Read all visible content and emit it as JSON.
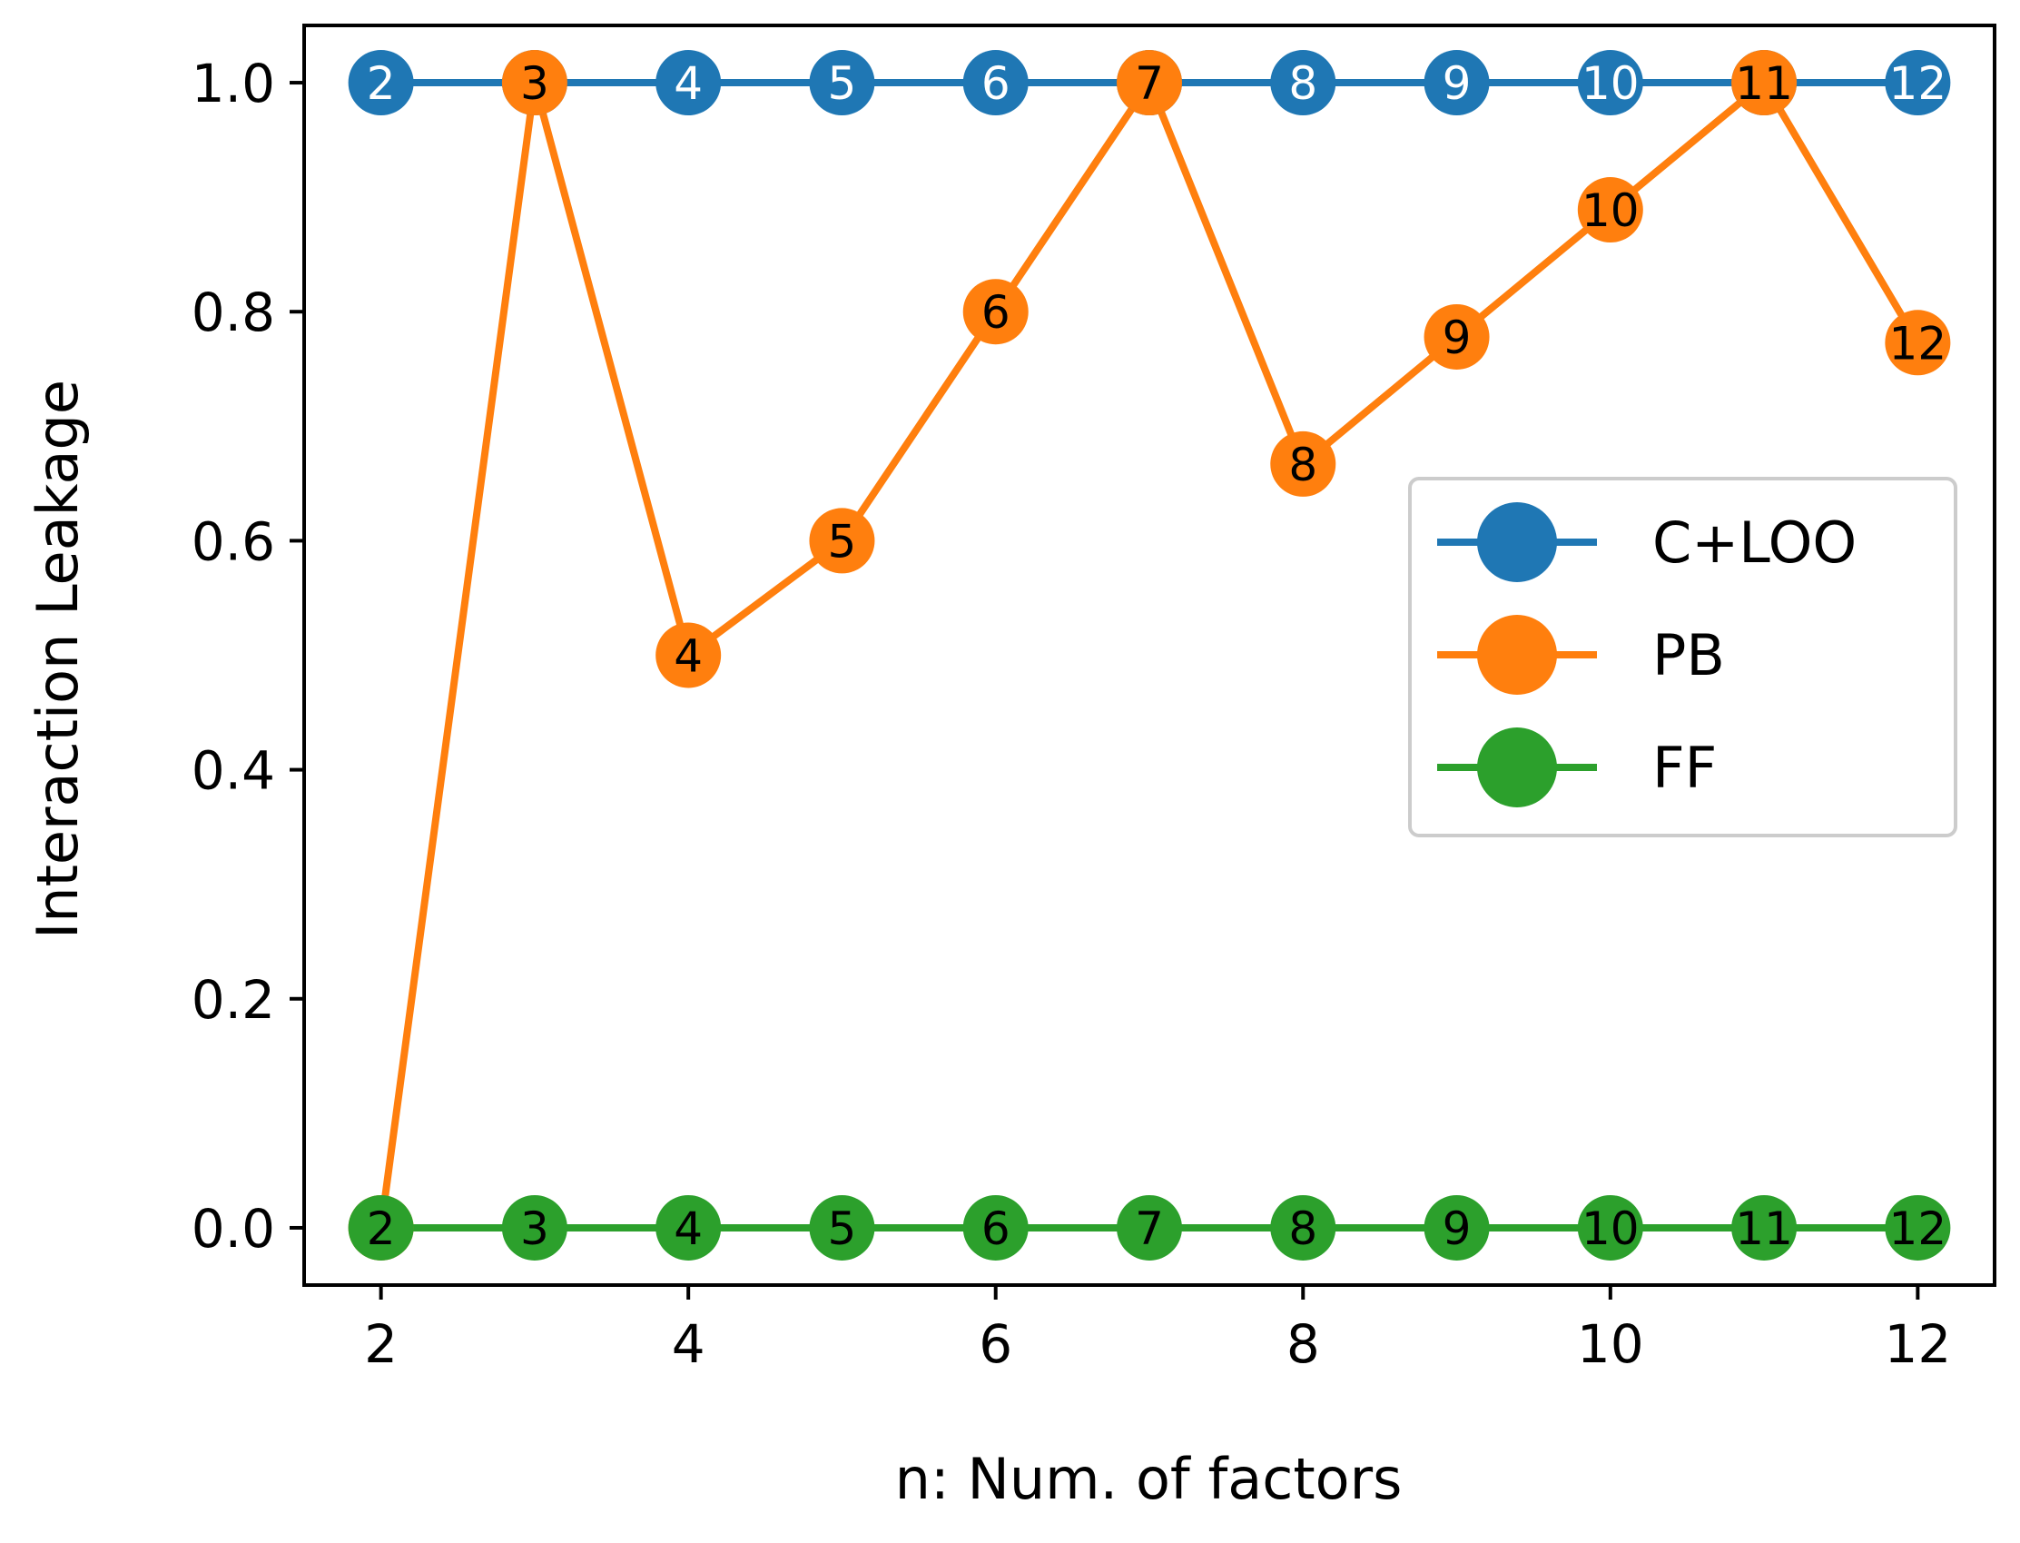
{
  "chart_data": {
    "type": "line",
    "title": "",
    "xlabel": "n: Num. of factors",
    "ylabel": "Interaction Leakage",
    "xlim": [
      1.5,
      12.5
    ],
    "ylim": [
      -0.05,
      1.05
    ],
    "x_ticks": [
      2,
      4,
      6,
      8,
      10,
      12
    ],
    "y_ticks": [
      0.0,
      0.2,
      0.4,
      0.6,
      0.8,
      1.0
    ],
    "x_tick_labels": [
      "2",
      "4",
      "6",
      "8",
      "10",
      "12"
    ],
    "y_tick_labels": [
      "0.0",
      "0.2",
      "0.4",
      "0.6",
      "0.8",
      "1.0"
    ],
    "grid": false,
    "legend_position": "center-right",
    "x": [
      2,
      3,
      4,
      5,
      6,
      7,
      8,
      9,
      10,
      11,
      12
    ],
    "point_labels": [
      "2",
      "3",
      "4",
      "5",
      "6",
      "7",
      "8",
      "9",
      "10",
      "11",
      "12"
    ],
    "series": [
      {
        "name": "C+LOO",
        "color": "#1f77b4",
        "label_color": "#ffffff",
        "values": [
          1.0,
          1.0,
          1.0,
          1.0,
          1.0,
          1.0,
          1.0,
          1.0,
          1.0,
          1.0,
          1.0
        ]
      },
      {
        "name": "PB",
        "color": "#ff7f0e",
        "label_color": "#000000",
        "values": [
          0.0,
          1.0,
          0.5,
          0.6,
          0.8,
          1.0,
          0.667,
          0.778,
          0.889,
          1.0,
          0.773
        ]
      },
      {
        "name": "FF",
        "color": "#2ca02c",
        "label_color": "#000000",
        "values": [
          0.0,
          0.0,
          0.0,
          0.0,
          0.0,
          0.0,
          0.0,
          0.0,
          0.0,
          0.0,
          0.0
        ]
      }
    ]
  }
}
